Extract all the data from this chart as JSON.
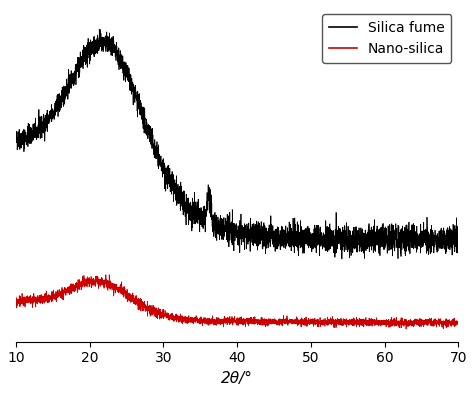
{
  "xlabel": "2θ/°",
  "xlim": [
    10,
    70
  ],
  "black_color": "#000000",
  "red_color": "#cc0000",
  "legend_labels": [
    "Silica fume",
    "Nano-silica"
  ],
  "figsize": [
    4.74,
    3.93
  ],
  "dpi": 100
}
